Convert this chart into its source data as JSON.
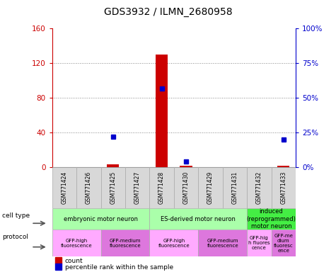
{
  "title": "GDS3932 / ILMN_2680958",
  "samples": [
    "GSM771424",
    "GSM771426",
    "GSM771425",
    "GSM771427",
    "GSM771428",
    "GSM771430",
    "GSM771429",
    "GSM771431",
    "GSM771432",
    "GSM771433"
  ],
  "count_values": [
    0,
    0,
    3,
    0,
    130,
    2,
    0,
    0,
    0,
    2
  ],
  "percentile_values": [
    null,
    null,
    22,
    null,
    57,
    4,
    null,
    null,
    null,
    20
  ],
  "ylim_left": [
    0,
    160
  ],
  "ylim_right": [
    0,
    100
  ],
  "yticks_left": [
    0,
    40,
    80,
    120,
    160
  ],
  "yticks_right": [
    0,
    25,
    50,
    75,
    100
  ],
  "ytick_labels_left": [
    "0",
    "40",
    "80",
    "120",
    "160"
  ],
  "ytick_labels_right": [
    "0%",
    "25%",
    "50%",
    "75%",
    "100%"
  ],
  "left_axis_color": "#cc0000",
  "right_axis_color": "#0000cc",
  "bar_color": "#cc0000",
  "dot_color": "#0000cc",
  "cell_type_groups": [
    {
      "label": "embryonic motor neuron",
      "start": 0,
      "end": 4,
      "color": "#aaffaa"
    },
    {
      "label": "ES-derived motor neuron",
      "start": 4,
      "end": 8,
      "color": "#aaffaa"
    },
    {
      "label": "induced\n(reprogrammed)\nmotor neuron",
      "start": 8,
      "end": 10,
      "color": "#44ee44"
    }
  ],
  "protocol_groups": [
    {
      "label": "GFP-high\nfluorescence",
      "start": 0,
      "end": 2,
      "color": "#ffaaff"
    },
    {
      "label": "GFP-medium\nfluorescence",
      "start": 2,
      "end": 4,
      "color": "#dd77dd"
    },
    {
      "label": "GFP-high\nfluorescence",
      "start": 4,
      "end": 6,
      "color": "#ffaaff"
    },
    {
      "label": "GFP-medium\nfluorescence",
      "start": 6,
      "end": 8,
      "color": "#dd77dd"
    },
    {
      "label": "GFP-hig\nh fluores\ncence",
      "start": 8,
      "end": 9,
      "color": "#ffaaff"
    },
    {
      "label": "GFP-me\ndium\nfluoresc\nence",
      "start": 9,
      "end": 10,
      "color": "#dd77dd"
    }
  ],
  "grid_color": "#888888",
  "sample_bg_color": "#d8d8d8",
  "sample_edge_color": "#aaaaaa"
}
